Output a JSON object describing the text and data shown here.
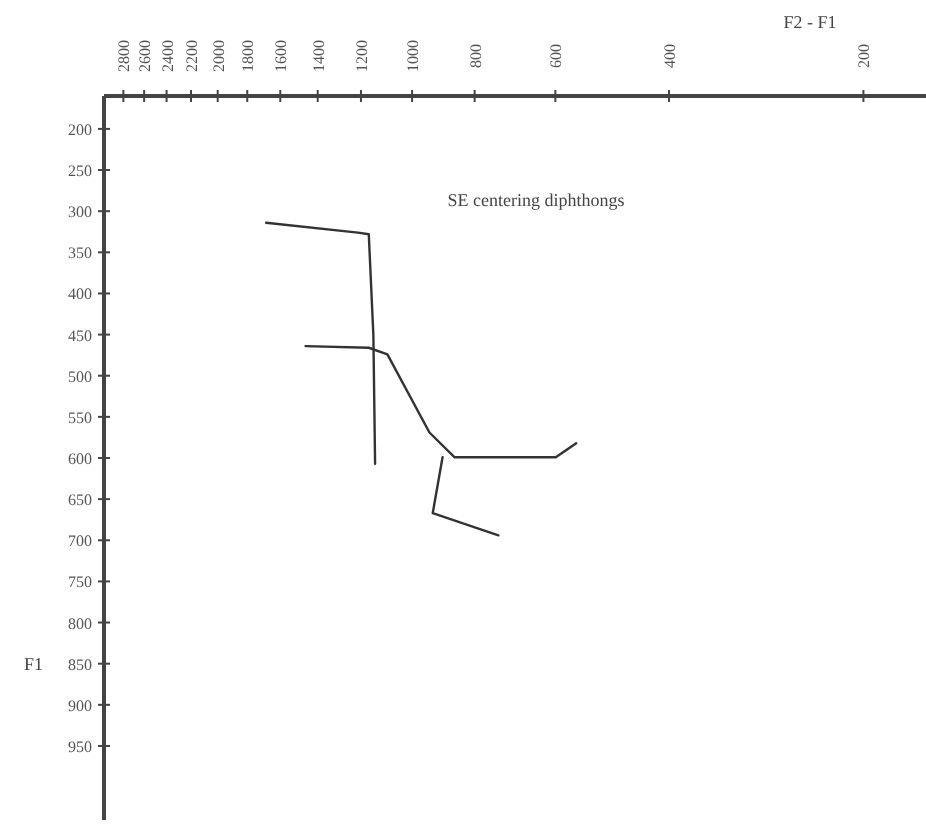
{
  "chart_data": {
    "type": "line",
    "title": "SE centering diphthongs",
    "xlabel": "F2 - F1",
    "ylabel": "F1",
    "xlim": [
      3000,
      160
    ],
    "xticks": [
      2800,
      2600,
      2400,
      2200,
      2000,
      1800,
      1600,
      1400,
      1200,
      1000,
      800,
      600,
      400,
      200
    ],
    "ylim": [
      1040,
      160
    ],
    "yticks": [
      200,
      250,
      300,
      350,
      400,
      450,
      500,
      550,
      600,
      650,
      700,
      750,
      800,
      850,
      900,
      950
    ],
    "log": "x",
    "grid": false,
    "marker": "none",
    "line_style": "solid",
    "series": [
      {
        "color": "#333333",
        "x": [
          1683,
          1213,
          1167,
          1148,
          1141
        ],
        "values": [
          314,
          326,
          328,
          451,
          607
        ]
      },
      {
        "color": "#333333",
        "x": [
          1462,
          1167,
          1092,
          940,
          860,
          599,
          557
        ],
        "values": [
          464,
          466,
          474,
          569,
          599,
          599,
          582
        ]
      },
      {
        "color": "#333333",
        "x": [
          897,
          929,
          735
        ],
        "values": [
          599,
          667,
          694
        ]
      }
    ]
  }
}
